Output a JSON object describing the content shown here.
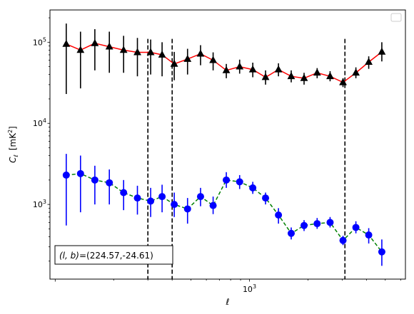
{
  "chart_data": {
    "type": "scatter",
    "x_scale": "log",
    "y_scale": "log",
    "xlim": [
      94,
      6350
    ],
    "ylim": [
      120,
      250000
    ],
    "xlabel_math": "ℓ",
    "ylabel": {
      "symbol": "C",
      "subscript": "ℓ",
      "unit_prefix": "[mK",
      "unit_power": "2",
      "unit_suffix": "]"
    },
    "x_tick_labels": [
      {
        "value": 1000,
        "base": "10",
        "exp": "3"
      }
    ],
    "y_tick_labels": [
      {
        "value": 1000,
        "base": "10",
        "exp": "3"
      },
      {
        "value": 10000,
        "base": "10",
        "exp": "4"
      },
      {
        "value": 100000,
        "base": "10",
        "exp": "5"
      }
    ],
    "vertical_lines": [
      300,
      400,
      3100
    ],
    "legend": {
      "placement": "top-right",
      "entries": []
    },
    "annotation": {
      "lb_label": "(l, b)",
      "value": "=(224.57,-24.61)",
      "placement": "bottom-left"
    },
    "series": [
      {
        "marker": "triangle",
        "color": "#000000",
        "line_color": "#ff0000",
        "line_style": "solid",
        "x": [
          114,
          135,
          160,
          190,
          225,
          265,
          310,
          355,
          410,
          480,
          560,
          650,
          760,
          890,
          1040,
          1210,
          1410,
          1640,
          1910,
          2230,
          2600,
          3030,
          3530,
          4110,
          4800
        ],
        "y": [
          95000,
          80000,
          97000,
          88000,
          80000,
          75000,
          75000,
          70000,
          54000,
          62000,
          72000,
          60000,
          45000,
          50000,
          46000,
          37000,
          46000,
          38000,
          36000,
          42000,
          38000,
          32000,
          42000,
          57000,
          76000
        ],
        "y_lower": [
          23000,
          27000,
          45000,
          42000,
          42000,
          38000,
          40000,
          38000,
          34000,
          40000,
          52000,
          45000,
          36000,
          41000,
          37000,
          30000,
          38000,
          32000,
          30000,
          36000,
          33000,
          28000,
          36000,
          47000,
          58000
        ],
        "y_upper": [
          170000,
          135000,
          145000,
          135000,
          120000,
          113000,
          108000,
          100000,
          76000,
          83000,
          92000,
          75000,
          54000,
          61000,
          56000,
          45000,
          55000,
          45000,
          42000,
          48000,
          44000,
          36000,
          49000,
          67000,
          100000
        ]
      },
      {
        "marker": "circle",
        "color": "#0000ff",
        "line_color": "#008000",
        "line_style": "dashed",
        "x": [
          114,
          135,
          160,
          190,
          225,
          265,
          310,
          355,
          410,
          480,
          560,
          650,
          760,
          890,
          1040,
          1210,
          1410,
          1640,
          1910,
          2230,
          2600,
          3030,
          3530,
          4110,
          4800
        ],
        "y": [
          2300,
          2400,
          2000,
          1850,
          1400,
          1200,
          1100,
          1250,
          1000,
          880,
          1250,
          970,
          2000,
          1900,
          1600,
          1200,
          740,
          440,
          550,
          580,
          600,
          360,
          520,
          420,
          260
        ],
        "y_lower": [
          550,
          800,
          1000,
          1000,
          850,
          750,
          700,
          800,
          700,
          580,
          950,
          760,
          1600,
          1550,
          1350,
          1000,
          580,
          370,
          470,
          500,
          520,
          315,
          440,
          330,
          175
        ],
        "y_upper": [
          4200,
          4000,
          3000,
          2700,
          2000,
          1700,
          1600,
          1750,
          1400,
          1200,
          1600,
          1250,
          2500,
          2300,
          1900,
          1400,
          900,
          520,
          640,
          680,
          700,
          410,
          620,
          510,
          370
        ]
      }
    ]
  }
}
